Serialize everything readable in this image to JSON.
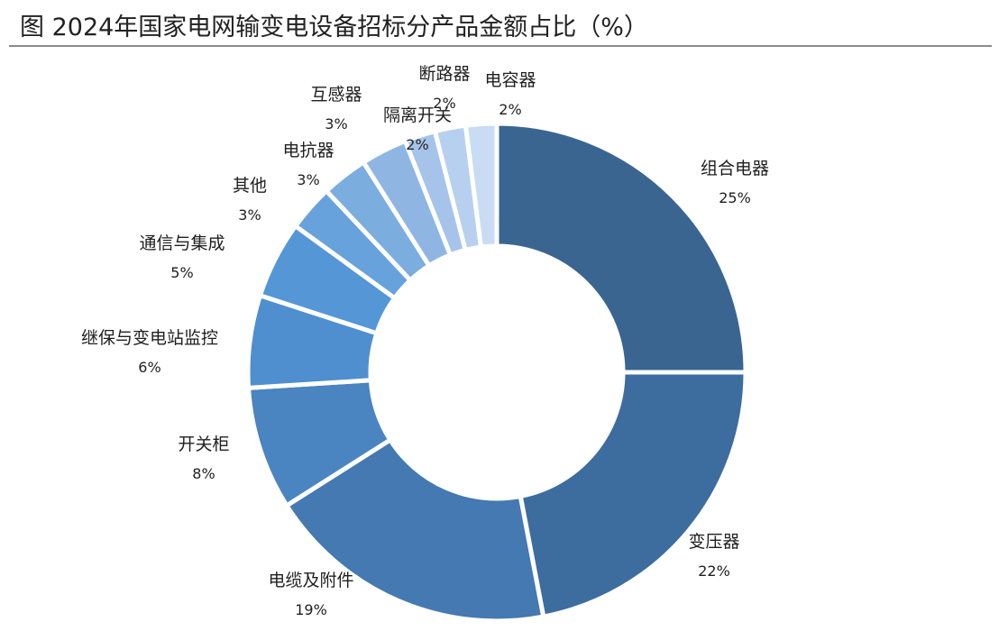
{
  "title": "图 2024年国家电网输变电设备招标分产品金额占比（%）",
  "chart_data": {
    "type": "pie",
    "style": "donut",
    "unit": "%",
    "categories": [
      "组合电器",
      "变压器",
      "电缆及附件",
      "开关柜",
      "继保与变电站监控",
      "通信与集成",
      "其他",
      "电抗器",
      "互感器",
      "隔离开关",
      "断路器",
      "电容器"
    ],
    "values": [
      25,
      22,
      19,
      8,
      6,
      5,
      3,
      3,
      3,
      2,
      2,
      2
    ],
    "value_labels": [
      "25%",
      "22%",
      "19%",
      "8%",
      "6%",
      "5%",
      "3%",
      "3%",
      "3%",
      "2%",
      "2%",
      "2%"
    ],
    "colors": [
      "#3a6591",
      "#3d6d9f",
      "#4479b2",
      "#4a84c1",
      "#4f8fd0",
      "#5596d6",
      "#68a2dc",
      "#7caddf",
      "#8fb6e3",
      "#a6c4ea",
      "#b8d0ef",
      "#c9dcf4"
    ],
    "legend": "none",
    "labels": "outside"
  }
}
